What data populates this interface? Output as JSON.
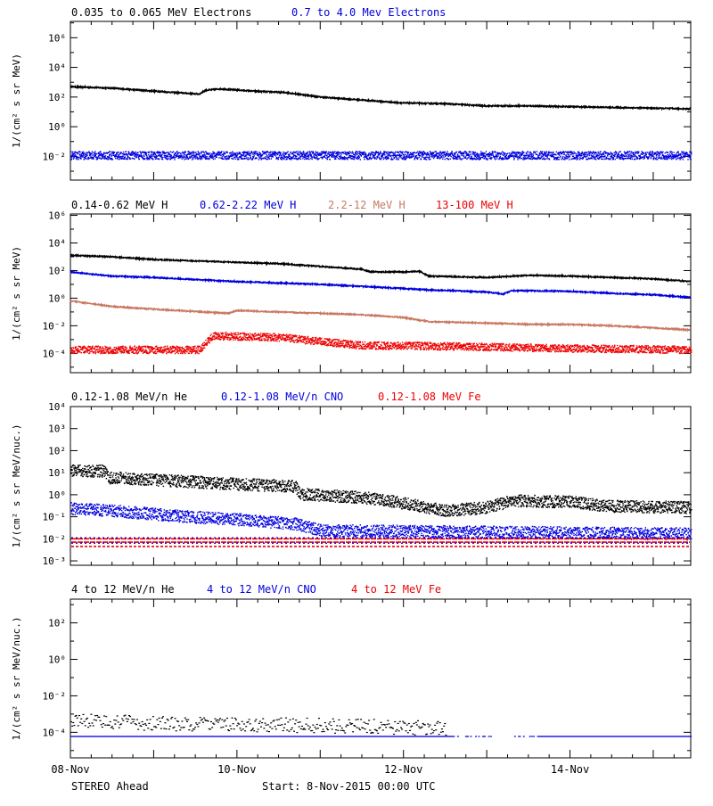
{
  "footer": {
    "spacecraft": "STEREO Ahead",
    "start_label": "Start:",
    "start_time": "8-Nov-2015 00:00 UTC"
  },
  "colors": {
    "black": "#000000",
    "blue": "#0000dd",
    "salmon": "#c87860",
    "red": "#ee0000"
  },
  "x_ticks": [
    {
      "day": 0,
      "label": "08-Nov"
    },
    {
      "day": 2,
      "label": "10-Nov"
    },
    {
      "day": 4,
      "label": "12-Nov"
    },
    {
      "day": 6,
      "label": "14-Nov"
    }
  ],
  "chart_data": [
    {
      "type": "scatter",
      "id": "electrons",
      "ylabel": "1/(cm² s sr MeV)",
      "yscale": "log",
      "ylim_exp": [
        -3.6,
        7.1
      ],
      "yticks_exp": [
        -2,
        0,
        2,
        4,
        6
      ],
      "x_unit": "days since 8-Nov-2015 00:00 UTC",
      "xlim": [
        0,
        7.45
      ],
      "series": [
        {
          "name": "0.035 to 0.065 MeV Electrons",
          "color": "black",
          "style": "line",
          "points": [
            [
              0,
              2.7
            ],
            [
              0.5,
              2.6
            ],
            [
              1.0,
              2.4
            ],
            [
              1.55,
              2.2
            ],
            [
              1.62,
              2.45
            ],
            [
              1.8,
              2.55
            ],
            [
              2.2,
              2.4
            ],
            [
              2.6,
              2.3
            ],
            [
              3.0,
              2.0
            ],
            [
              3.5,
              1.8
            ],
            [
              4.0,
              1.6
            ],
            [
              4.5,
              1.55
            ],
            [
              5.0,
              1.4
            ],
            [
              5.5,
              1.4
            ],
            [
              6.0,
              1.35
            ],
            [
              6.5,
              1.3
            ],
            [
              7.0,
              1.25
            ],
            [
              7.45,
              1.2
            ]
          ]
        },
        {
          "name": "0.7 to 4.0 Mev Electrons",
          "color": "blue",
          "style": "noise",
          "points": [
            [
              0,
              -1.9
            ],
            [
              7.45,
              -1.9
            ]
          ]
        }
      ]
    },
    {
      "type": "scatter",
      "id": "protons",
      "ylabel": "1/(cm² s sr MeV)",
      "yscale": "log",
      "ylim_exp": [
        -5.4,
        6.1
      ],
      "yticks_exp": [
        -4,
        -2,
        0,
        2,
        4,
        6
      ],
      "x_unit": "days since 8-Nov-2015 00:00 UTC",
      "xlim": [
        0,
        7.45
      ],
      "series": [
        {
          "name": "0.14-0.62 MeV H",
          "color": "black",
          "style": "line",
          "points": [
            [
              0,
              3.1
            ],
            [
              0.5,
              3.0
            ],
            [
              1.0,
              2.8
            ],
            [
              2.0,
              2.6
            ],
            [
              2.5,
              2.5
            ],
            [
              3.0,
              2.3
            ],
            [
              3.5,
              2.1
            ],
            [
              3.6,
              1.9
            ],
            [
              4.0,
              1.9
            ],
            [
              4.2,
              1.95
            ],
            [
              4.3,
              1.6
            ],
            [
              5.0,
              1.5
            ],
            [
              5.5,
              1.65
            ],
            [
              6.0,
              1.6
            ],
            [
              6.5,
              1.5
            ],
            [
              7.0,
              1.4
            ],
            [
              7.45,
              1.2
            ]
          ]
        },
        {
          "name": "0.62-2.22 MeV H",
          "color": "blue",
          "style": "line",
          "points": [
            [
              0,
              1.9
            ],
            [
              0.5,
              1.6
            ],
            [
              1.0,
              1.5
            ],
            [
              2.0,
              1.2
            ],
            [
              3.0,
              1.0
            ],
            [
              3.5,
              0.85
            ],
            [
              4.0,
              0.7
            ],
            [
              4.3,
              0.6
            ],
            [
              5.0,
              0.45
            ],
            [
              5.2,
              0.3
            ],
            [
              5.3,
              0.55
            ],
            [
              6.0,
              0.5
            ],
            [
              6.5,
              0.35
            ],
            [
              7.0,
              0.25
            ],
            [
              7.45,
              0.05
            ]
          ]
        },
        {
          "name": "2.2-12 MeV H",
          "color": "salmon",
          "style": "line",
          "points": [
            [
              0,
              -0.2
            ],
            [
              0.5,
              -0.6
            ],
            [
              1.0,
              -0.8
            ],
            [
              1.9,
              -1.1
            ],
            [
              2.0,
              -0.9
            ],
            [
              2.5,
              -1.0
            ],
            [
              3.0,
              -1.1
            ],
            [
              3.5,
              -1.2
            ],
            [
              4.0,
              -1.4
            ],
            [
              4.3,
              -1.7
            ],
            [
              5.0,
              -1.8
            ],
            [
              5.5,
              -1.9
            ],
            [
              6.0,
              -1.9
            ],
            [
              6.5,
              -2.0
            ],
            [
              7.0,
              -2.15
            ],
            [
              7.45,
              -2.3
            ]
          ]
        },
        {
          "name": "13-100 MeV H",
          "color": "red",
          "style": "noise",
          "points": [
            [
              0,
              -3.7
            ],
            [
              1.55,
              -3.7
            ],
            [
              1.7,
              -2.7
            ],
            [
              2.5,
              -2.8
            ],
            [
              3.0,
              -3.1
            ],
            [
              3.5,
              -3.4
            ],
            [
              4.0,
              -3.4
            ],
            [
              5.0,
              -3.5
            ],
            [
              6.0,
              -3.6
            ],
            [
              7.45,
              -3.7
            ]
          ]
        }
      ]
    },
    {
      "type": "scatter",
      "id": "heavy-low",
      "ylabel": "1/(cm² s sr MeV/nuc.)",
      "yscale": "log",
      "ylim_exp": [
        -3.2,
        4.0
      ],
      "yticks_exp": [
        -3,
        -2,
        -1,
        0,
        1,
        2,
        3,
        4
      ],
      "x_unit": "days since 8-Nov-2015 00:00 UTC",
      "xlim": [
        0,
        7.45
      ],
      "series": [
        {
          "name": "0.12-1.08 MeV/n He",
          "color": "black",
          "style": "noise",
          "points": [
            [
              0,
              1.1
            ],
            [
              0.4,
              1.1
            ],
            [
              0.45,
              0.8
            ],
            [
              1.0,
              0.7
            ],
            [
              2.0,
              0.5
            ],
            [
              2.7,
              0.4
            ],
            [
              2.75,
              0.05
            ],
            [
              3.5,
              -0.1
            ],
            [
              3.9,
              -0.3
            ],
            [
              4.5,
              -0.7
            ],
            [
              5.0,
              -0.55
            ],
            [
              5.3,
              -0.25
            ],
            [
              6.0,
              -0.3
            ],
            [
              6.5,
              -0.5
            ],
            [
              7.45,
              -0.55
            ]
          ]
        },
        {
          "name": "0.12-1.08 MeV/n CNO",
          "color": "blue",
          "style": "noise",
          "points": [
            [
              0,
              -0.6
            ],
            [
              0.5,
              -0.7
            ],
            [
              1.0,
              -0.85
            ],
            [
              1.5,
              -1.0
            ],
            [
              2.0,
              -1.1
            ],
            [
              2.7,
              -1.3
            ],
            [
              3.0,
              -1.6
            ],
            [
              7.45,
              -1.75
            ]
          ]
        },
        {
          "name": "0.12-1.08 MeV Fe",
          "color": "red",
          "style": "band",
          "points": [
            [
              0,
              -2.0
            ],
            [
              7.45,
              -2.0
            ]
          ]
        }
      ]
    },
    {
      "type": "scatter",
      "id": "heavy-high",
      "ylabel": "1/(cm² s sr MeV/nuc.)",
      "yscale": "log",
      "ylim_exp": [
        -5.4,
        3.3
      ],
      "yticks_exp": [
        -4,
        -2,
        0,
        2
      ],
      "x_unit": "days since 8-Nov-2015 00:00 UTC",
      "xlim": [
        0,
        7.45
      ],
      "series": [
        {
          "name": "4 to 12 MeV/n He",
          "color": "black",
          "style": "sparse",
          "points": [
            [
              0,
              -3.6
            ],
            [
              1.0,
              -3.8
            ],
            [
              2.0,
              -3.85
            ],
            [
              3.0,
              -3.9
            ],
            [
              4.0,
              -4.0
            ],
            [
              4.5,
              -4.1
            ]
          ]
        },
        {
          "name": "4 to 12 MeV/n CNO",
          "color": "blue",
          "style": "sparse",
          "points": [
            [
              0,
              -4.2
            ],
            [
              3.0,
              -4.2
            ],
            [
              5.6,
              -4.2
            ],
            [
              7.45,
              -4.2
            ]
          ]
        },
        {
          "name": "4 to 12 MeV Fe",
          "color": "red",
          "style": "none",
          "points": []
        }
      ]
    }
  ]
}
